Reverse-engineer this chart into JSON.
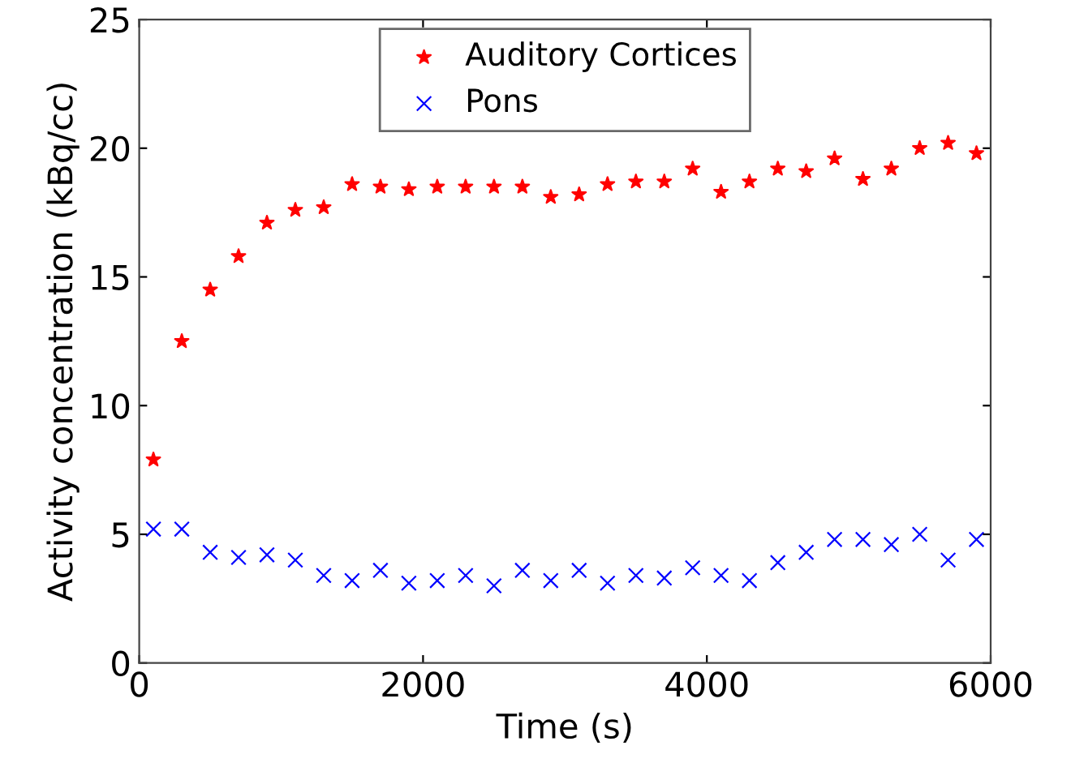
{
  "chart_data": {
    "type": "scatter",
    "xlabel": "Time (s)",
    "ylabel": "Activity concentration (kBq/cc)",
    "x": [
      100,
      300,
      500,
      700,
      900,
      1100,
      1300,
      1500,
      1700,
      1900,
      2100,
      2300,
      2500,
      2700,
      2900,
      3100,
      3300,
      3500,
      3700,
      3900,
      4100,
      4300,
      4500,
      4700,
      4900,
      5100,
      5300,
      5500,
      5700,
      5900
    ],
    "series": [
      {
        "name": "Auditory Cortices",
        "color": "#ff0000",
        "marker": "star",
        "values": [
          7.9,
          12.5,
          14.5,
          15.8,
          17.1,
          17.6,
          17.7,
          18.6,
          18.5,
          18.4,
          18.5,
          18.5,
          18.5,
          18.5,
          18.1,
          18.2,
          18.6,
          18.7,
          18.7,
          19.2,
          18.3,
          18.7,
          19.2,
          19.1,
          19.6,
          18.8,
          19.2,
          20.0,
          20.2,
          19.8
        ]
      },
      {
        "name": "Pons",
        "color": "#0000ff",
        "marker": "cross",
        "values": [
          5.2,
          5.2,
          4.3,
          4.1,
          4.2,
          4.0,
          3.4,
          3.2,
          3.6,
          3.1,
          3.2,
          3.4,
          3.0,
          3.6,
          3.2,
          3.6,
          3.1,
          3.4,
          3.3,
          3.7,
          3.4,
          3.2,
          3.9,
          4.3,
          4.8,
          4.8,
          4.6,
          5.0,
          4.0,
          4.8
        ]
      }
    ],
    "xlim": [
      0,
      6000
    ],
    "xticks": [
      0,
      2000,
      4000,
      6000
    ],
    "ylim": [
      0,
      25
    ],
    "yticks": [
      0,
      5,
      10,
      15,
      20,
      25
    ],
    "grid": false,
    "legend": "top"
  }
}
